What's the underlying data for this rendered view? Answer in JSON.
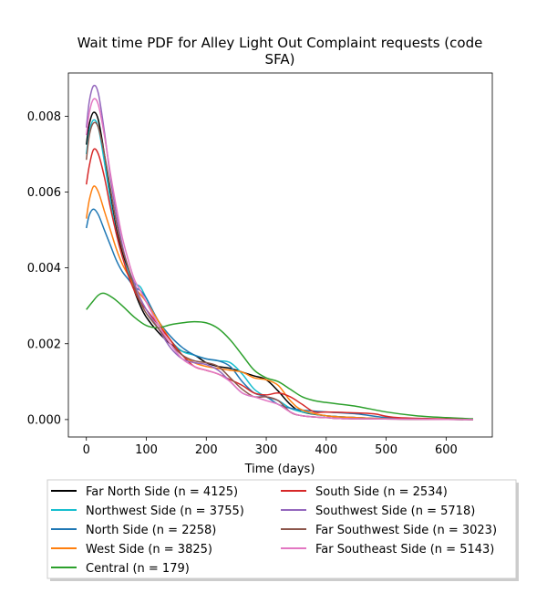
{
  "chart_data": {
    "type": "line",
    "title_line1": "Wait time PDF for Alley Light Out Complaint  requests (code",
    "title_line2": "SFA)",
    "xlabel": "Time (days)",
    "ylabel": "",
    "xlim": [
      -30,
      677
    ],
    "ylim": [
      -0.00046,
      0.00914
    ],
    "x_ticks": [
      0,
      100,
      200,
      300,
      400,
      500,
      600
    ],
    "x_tick_labels": [
      "0",
      "100",
      "200",
      "300",
      "400",
      "500",
      "600"
    ],
    "y_ticks": [
      0.0,
      0.002,
      0.004,
      0.006,
      0.008
    ],
    "y_tick_labels": [
      "0.000",
      "0.002",
      "0.004",
      "0.006",
      "0.008"
    ],
    "grid": false,
    "legend_placement": "below plot, two columns",
    "series": [
      {
        "name": "Far North Side (n = 4125)",
        "color": "#000000",
        "points": [
          [
            0,
            0.00725
          ],
          [
            5,
            0.0078
          ],
          [
            12,
            0.0081
          ],
          [
            20,
            0.0079
          ],
          [
            30,
            0.007
          ],
          [
            40,
            0.0059
          ],
          [
            50,
            0.005
          ],
          [
            60,
            0.0044
          ],
          [
            70,
            0.0039
          ],
          [
            80,
            0.0034
          ],
          [
            90,
            0.003
          ],
          [
            100,
            0.0027
          ],
          [
            120,
            0.0023
          ],
          [
            140,
            0.002
          ],
          [
            160,
            0.0018
          ],
          [
            180,
            0.0017
          ],
          [
            200,
            0.0015
          ],
          [
            220,
            0.0014
          ],
          [
            240,
            0.00135
          ],
          [
            260,
            0.00125
          ],
          [
            280,
            0.00115
          ],
          [
            300,
            0.00105
          ],
          [
            320,
            0.00075
          ],
          [
            340,
            0.0004
          ],
          [
            360,
            0.0002
          ],
          [
            400,
            0.0001
          ],
          [
            450,
            5e-05
          ],
          [
            500,
            2e-05
          ],
          [
            550,
            1e-05
          ],
          [
            645,
            0.0
          ]
        ]
      },
      {
        "name": "Northwest Side (n = 3755)",
        "color": "#17becf",
        "points": [
          [
            0,
            0.007
          ],
          [
            5,
            0.0076
          ],
          [
            12,
            0.0079
          ],
          [
            20,
            0.0077
          ],
          [
            30,
            0.0068
          ],
          [
            40,
            0.0058
          ],
          [
            50,
            0.0049
          ],
          [
            60,
            0.0043
          ],
          [
            70,
            0.0039
          ],
          [
            80,
            0.0036
          ],
          [
            90,
            0.0035
          ],
          [
            100,
            0.0032
          ],
          [
            120,
            0.0026
          ],
          [
            140,
            0.0021
          ],
          [
            160,
            0.0018
          ],
          [
            180,
            0.0017
          ],
          [
            200,
            0.0016
          ],
          [
            220,
            0.00155
          ],
          [
            240,
            0.0015
          ],
          [
            260,
            0.0012
          ],
          [
            280,
            0.0008
          ],
          [
            300,
            0.0006
          ],
          [
            320,
            0.0005
          ],
          [
            340,
            0.0003
          ],
          [
            360,
            0.0002
          ],
          [
            400,
            0.0001
          ],
          [
            450,
            5e-05
          ],
          [
            500,
            2e-05
          ],
          [
            550,
            1e-05
          ],
          [
            645,
            0.0
          ]
        ]
      },
      {
        "name": "North Side (n = 2258)",
        "color": "#1f77b4",
        "points": [
          [
            0,
            0.00505
          ],
          [
            5,
            0.0054
          ],
          [
            12,
            0.00555
          ],
          [
            20,
            0.0054
          ],
          [
            30,
            0.005
          ],
          [
            40,
            0.0046
          ],
          [
            50,
            0.0042
          ],
          [
            60,
            0.0039
          ],
          [
            70,
            0.0037
          ],
          [
            80,
            0.0035
          ],
          [
            90,
            0.0034
          ],
          [
            100,
            0.0032
          ],
          [
            120,
            0.0026
          ],
          [
            140,
            0.0022
          ],
          [
            160,
            0.0019
          ],
          [
            180,
            0.0017
          ],
          [
            200,
            0.0016
          ],
          [
            220,
            0.00155
          ],
          [
            240,
            0.0014
          ],
          [
            260,
            0.001
          ],
          [
            280,
            0.0007
          ],
          [
            300,
            0.0006
          ],
          [
            320,
            0.0004
          ],
          [
            340,
            0.0003
          ],
          [
            360,
            0.00025
          ],
          [
            400,
            0.0002
          ],
          [
            450,
            0.00015
          ],
          [
            500,
            5e-05
          ],
          [
            550,
            2e-05
          ],
          [
            645,
            0.0
          ]
        ]
      },
      {
        "name": "West Side (n = 3825)",
        "color": "#ff7f0e",
        "points": [
          [
            0,
            0.0053
          ],
          [
            5,
            0.0058
          ],
          [
            12,
            0.00615
          ],
          [
            20,
            0.006
          ],
          [
            30,
            0.0055
          ],
          [
            40,
            0.005
          ],
          [
            50,
            0.0045
          ],
          [
            60,
            0.0041
          ],
          [
            70,
            0.0038
          ],
          [
            80,
            0.0035
          ],
          [
            90,
            0.0033
          ],
          [
            100,
            0.0031
          ],
          [
            120,
            0.0026
          ],
          [
            140,
            0.0021
          ],
          [
            160,
            0.0017
          ],
          [
            180,
            0.0015
          ],
          [
            200,
            0.0014
          ],
          [
            220,
            0.00135
          ],
          [
            240,
            0.0013
          ],
          [
            260,
            0.00125
          ],
          [
            280,
            0.0011
          ],
          [
            300,
            0.00105
          ],
          [
            320,
            0.0009
          ],
          [
            340,
            0.0005
          ],
          [
            360,
            0.00025
          ],
          [
            400,
            0.0001
          ],
          [
            450,
            5e-05
          ],
          [
            500,
            2e-05
          ],
          [
            550,
            1e-05
          ],
          [
            645,
            0.0
          ]
        ]
      },
      {
        "name": "Central (n = 179)",
        "color": "#2ca02c",
        "points": [
          [
            0,
            0.0029
          ],
          [
            10,
            0.0031
          ],
          [
            20,
            0.00328
          ],
          [
            30,
            0.00333
          ],
          [
            45,
            0.0032
          ],
          [
            60,
            0.003
          ],
          [
            80,
            0.0027
          ],
          [
            100,
            0.00248
          ],
          [
            120,
            0.00242
          ],
          [
            140,
            0.0025
          ],
          [
            160,
            0.00255
          ],
          [
            180,
            0.00258
          ],
          [
            200,
            0.00255
          ],
          [
            220,
            0.0024
          ],
          [
            240,
            0.0021
          ],
          [
            260,
            0.0017
          ],
          [
            280,
            0.0013
          ],
          [
            300,
            0.0011
          ],
          [
            320,
            0.001
          ],
          [
            340,
            0.0008
          ],
          [
            360,
            0.0006
          ],
          [
            380,
            0.0005
          ],
          [
            400,
            0.00045
          ],
          [
            450,
            0.00035
          ],
          [
            500,
            0.0002
          ],
          [
            550,
            0.0001
          ],
          [
            600,
            5e-05
          ],
          [
            645,
            2e-05
          ]
        ]
      },
      {
        "name": "South Side (n = 2534)",
        "color": "#d62728",
        "points": [
          [
            0,
            0.0062
          ],
          [
            5,
            0.0067
          ],
          [
            12,
            0.00712
          ],
          [
            20,
            0.007
          ],
          [
            30,
            0.0064
          ],
          [
            40,
            0.0056
          ],
          [
            50,
            0.0049
          ],
          [
            60,
            0.0043
          ],
          [
            70,
            0.0038
          ],
          [
            80,
            0.0034
          ],
          [
            90,
            0.0031
          ],
          [
            100,
            0.0029
          ],
          [
            120,
            0.0025
          ],
          [
            140,
            0.0021
          ],
          [
            160,
            0.0017
          ],
          [
            180,
            0.0014
          ],
          [
            200,
            0.0013
          ],
          [
            220,
            0.0012
          ],
          [
            240,
            0.00105
          ],
          [
            260,
            0.0009
          ],
          [
            280,
            0.0007
          ],
          [
            300,
            0.00065
          ],
          [
            320,
            0.0007
          ],
          [
            340,
            0.0006
          ],
          [
            360,
            0.0004
          ],
          [
            380,
            0.0002
          ],
          [
            400,
            0.0002
          ],
          [
            440,
            0.00018
          ],
          [
            480,
            0.00015
          ],
          [
            520,
            5e-05
          ],
          [
            645,
            0.0
          ]
        ]
      },
      {
        "name": "Southwest Side (n = 5718)",
        "color": "#9467bd",
        "points": [
          [
            0,
            0.0077
          ],
          [
            5,
            0.0084
          ],
          [
            12,
            0.0088
          ],
          [
            20,
            0.0086
          ],
          [
            30,
            0.0076
          ],
          [
            40,
            0.0064
          ],
          [
            50,
            0.0054
          ],
          [
            60,
            0.0046
          ],
          [
            70,
            0.004
          ],
          [
            80,
            0.0036
          ],
          [
            90,
            0.0032
          ],
          [
            100,
            0.0029
          ],
          [
            120,
            0.0024
          ],
          [
            140,
            0.0019
          ],
          [
            160,
            0.0016
          ],
          [
            180,
            0.0015
          ],
          [
            200,
            0.00145
          ],
          [
            220,
            0.0013
          ],
          [
            240,
            0.001
          ],
          [
            260,
            0.0007
          ],
          [
            280,
            0.0006
          ],
          [
            300,
            0.0006
          ],
          [
            320,
            0.0005
          ],
          [
            340,
            0.0002
          ],
          [
            360,
            0.0001
          ],
          [
            400,
            5e-05
          ],
          [
            450,
            2e-05
          ],
          [
            645,
            0.0
          ]
        ]
      },
      {
        "name": "Far Southwest Side (n = 3023)",
        "color": "#8c564b",
        "points": [
          [
            0,
            0.00685
          ],
          [
            5,
            0.0075
          ],
          [
            12,
            0.00782
          ],
          [
            20,
            0.0077
          ],
          [
            30,
            0.007
          ],
          [
            40,
            0.0061
          ],
          [
            50,
            0.0052
          ],
          [
            60,
            0.0045
          ],
          [
            70,
            0.004
          ],
          [
            80,
            0.0035
          ],
          [
            90,
            0.0031
          ],
          [
            100,
            0.0028
          ],
          [
            120,
            0.0024
          ],
          [
            140,
            0.002
          ],
          [
            160,
            0.0017
          ],
          [
            180,
            0.00155
          ],
          [
            200,
            0.0015
          ],
          [
            220,
            0.0014
          ],
          [
            240,
            0.0011
          ],
          [
            260,
            0.0008
          ],
          [
            280,
            0.0006
          ],
          [
            300,
            0.0006
          ],
          [
            320,
            0.0005
          ],
          [
            340,
            0.0002
          ],
          [
            360,
            0.0001
          ],
          [
            400,
            5e-05
          ],
          [
            450,
            2e-05
          ],
          [
            645,
            0.0
          ]
        ]
      },
      {
        "name": "Far Southeast Side (n = 5143)",
        "color": "#e377c2",
        "points": [
          [
            0,
            0.0075
          ],
          [
            5,
            0.0081
          ],
          [
            12,
            0.00845
          ],
          [
            20,
            0.0083
          ],
          [
            30,
            0.0075
          ],
          [
            40,
            0.0065
          ],
          [
            50,
            0.0056
          ],
          [
            60,
            0.0048
          ],
          [
            70,
            0.0042
          ],
          [
            80,
            0.0037
          ],
          [
            90,
            0.0034
          ],
          [
            100,
            0.0031
          ],
          [
            120,
            0.0025
          ],
          [
            140,
            0.002
          ],
          [
            160,
            0.0016
          ],
          [
            180,
            0.0014
          ],
          [
            200,
            0.0013
          ],
          [
            220,
            0.0012
          ],
          [
            240,
            0.001
          ],
          [
            260,
            0.0007
          ],
          [
            280,
            0.0006
          ],
          [
            300,
            0.0005
          ],
          [
            320,
            0.0004
          ],
          [
            340,
            0.0002
          ],
          [
            360,
            0.0001
          ],
          [
            400,
            5e-05
          ],
          [
            450,
            2e-05
          ],
          [
            645,
            0.0
          ]
        ]
      }
    ]
  }
}
